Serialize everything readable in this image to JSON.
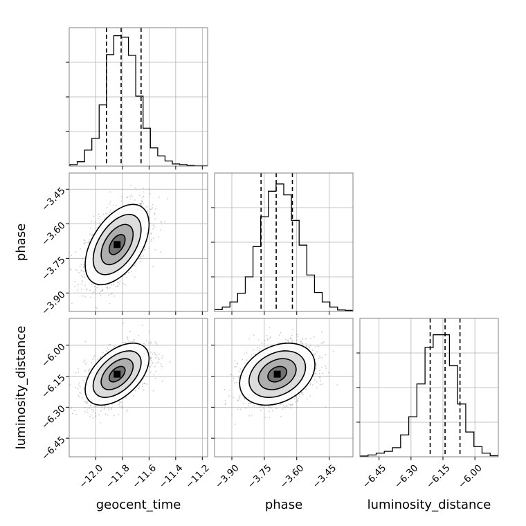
{
  "chart_data": {
    "type": "corner",
    "parameters": [
      "geocent_time",
      "phase",
      "luminosity_distance"
    ],
    "grid": true,
    "quantile_lines_style": "dashed",
    "contour_levels_sigma": [
      0.5,
      1.0,
      1.5,
      2.0
    ],
    "marginals": [
      {
        "parameter": "geocent_time",
        "bins_range": [
          -12.25,
          -11.15
        ],
        "counts": [
          0.2,
          0.4,
          1.2,
          4.4,
          7.6,
          16.8,
          30.6,
          35.8,
          35.4,
          30.4,
          19.2,
          10.4,
          5.0,
          2.8,
          1.4,
          0.6,
          0.4,
          0.2,
          0.1,
          0.1
        ],
        "quantiles": [
          -11.92,
          -11.81,
          -11.66
        ],
        "ylim": [
          0,
          38
        ],
        "xlim": [
          -12.2,
          -11.16
        ],
        "xticks": [
          -12.0,
          -11.8,
          -11.6,
          -11.4,
          -11.2
        ],
        "xticklabels": [
          "−12.0",
          "−11.8",
          "−11.6",
          "−11.4",
          "−11.2"
        ],
        "xlabel": "geocent_time"
      },
      {
        "parameter": "phase",
        "bins_range": [
          -3.98,
          -3.34
        ],
        "counts": [
          0.5,
          1.2,
          2.6,
          5.0,
          9.5,
          17.8,
          26.0,
          33.0,
          35.0,
          32.0,
          25.0,
          18.2,
          10.0,
          5.2,
          2.6,
          1.2,
          0.4,
          0.3
        ],
        "quantiles": [
          -3.765,
          -3.695,
          -3.62
        ],
        "ylim": [
          0,
          38
        ],
        "xlim": [
          -3.98,
          -3.34
        ],
        "xticks": [
          -3.9,
          -3.75,
          -3.6,
          -3.45
        ],
        "xticklabels": [
          "−3.90",
          "−3.75",
          "−3.60",
          "−3.45"
        ],
        "xlabel": "phase"
      },
      {
        "parameter": "luminosity_distance",
        "bins_range": [
          -6.54,
          -5.89
        ],
        "counts": [
          0.2,
          0.5,
          1.0,
          1.5,
          2.5,
          6.0,
          11.0,
          20.0,
          30.0,
          33.5,
          33.5,
          25.0,
          14.5,
          6.8,
          2.8,
          1.0,
          0.3
        ],
        "quantiles": [
          -6.21,
          -6.14,
          -6.07
        ],
        "ylim": [
          0,
          38
        ],
        "xlim": [
          -6.54,
          -5.89
        ],
        "xticks": [
          -6.45,
          -6.3,
          -6.15,
          -6.0
        ],
        "xticklabels": [
          "−6.45",
          "−6.30",
          "−6.15",
          "−6.00"
        ],
        "xlabel": "luminosity_distance"
      }
    ],
    "joint": [
      {
        "x": "geocent_time",
        "y": "phase",
        "x_mean": -11.84,
        "y_mean": -3.69,
        "x_std": 0.12,
        "y_std": 0.087,
        "correlation": 0.5
      },
      {
        "x": "geocent_time",
        "y": "luminosity_distance",
        "x_mean": -11.84,
        "y_mean": -6.14,
        "x_std": 0.12,
        "y_std": 0.075,
        "correlation": 0.5
      },
      {
        "x": "phase",
        "y": "luminosity_distance",
        "x_mean": -3.69,
        "y_mean": -6.14,
        "x_std": 0.087,
        "y_std": 0.075,
        "correlation": 0.3
      }
    ],
    "y_axes": [
      {
        "parameter": "phase",
        "ylim": [
          -3.98,
          -3.38
        ],
        "yticks": [
          -3.45,
          -3.6,
          -3.75,
          -3.9
        ],
        "yticklabels": [
          "−3.45",
          "−3.60",
          "−3.75",
          "−3.90"
        ],
        "ylabel": "phase"
      },
      {
        "parameter": "luminosity_distance",
        "ylim": [
          -6.54,
          -5.87
        ],
        "yticks": [
          -6.0,
          -6.15,
          -6.3,
          -6.45
        ],
        "yticklabels": [
          "−6.00",
          "−6.15",
          "−6.30",
          "−6.45"
        ],
        "ylabel": "luminosity_distance"
      }
    ]
  }
}
